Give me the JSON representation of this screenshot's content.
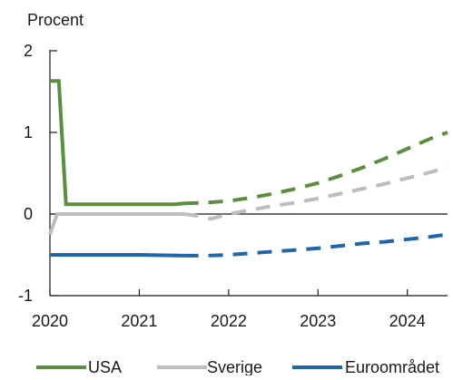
{
  "chart_data": {
    "type": "line",
    "ylabel": "Procent",
    "ylim": [
      -1,
      2
    ],
    "yticks": [
      -1,
      0,
      1,
      2
    ],
    "xlim": [
      2020.0,
      2024.45
    ],
    "xtick_positions": [
      2020,
      2021,
      2022,
      2023,
      2024
    ],
    "xtick_labels": [
      "2020",
      "2021",
      "2022",
      "2023",
      "2024"
    ],
    "zero_line": true,
    "legend_position": "bottom",
    "forecast_start": 2021.5,
    "series": [
      {
        "name": "USA",
        "color": "#5b8f3f",
        "actual": [
          [
            2020.0,
            1.63
          ],
          [
            2020.1,
            1.63
          ],
          [
            2020.18,
            0.12
          ],
          [
            2020.5,
            0.12
          ],
          [
            2021.0,
            0.12
          ],
          [
            2021.4,
            0.12
          ],
          [
            2021.5,
            0.13
          ]
        ],
        "forecast": [
          [
            2021.5,
            0.13
          ],
          [
            2021.75,
            0.14
          ],
          [
            2022.0,
            0.16
          ],
          [
            2022.25,
            0.2
          ],
          [
            2022.5,
            0.25
          ],
          [
            2022.75,
            0.31
          ],
          [
            2023.0,
            0.38
          ],
          [
            2023.25,
            0.47
          ],
          [
            2023.5,
            0.57
          ],
          [
            2023.75,
            0.68
          ],
          [
            2024.0,
            0.8
          ],
          [
            2024.25,
            0.92
          ],
          [
            2024.45,
            1.0
          ]
        ]
      },
      {
        "name": "Sverige",
        "color": "#bdbdbd",
        "actual": [
          [
            2020.0,
            -0.25
          ],
          [
            2020.08,
            0.0
          ],
          [
            2020.5,
            0.0
          ],
          [
            2021.0,
            0.0
          ],
          [
            2021.5,
            0.0
          ]
        ],
        "forecast": [
          [
            2021.5,
            0.0
          ],
          [
            2021.7,
            -0.03
          ],
          [
            2021.8,
            -0.06
          ],
          [
            2021.9,
            -0.03
          ],
          [
            2022.0,
            0.0
          ],
          [
            2022.25,
            0.05
          ],
          [
            2022.5,
            0.1
          ],
          [
            2022.75,
            0.14
          ],
          [
            2023.0,
            0.19
          ],
          [
            2023.25,
            0.25
          ],
          [
            2023.5,
            0.31
          ],
          [
            2023.75,
            0.37
          ],
          [
            2024.0,
            0.44
          ],
          [
            2024.25,
            0.51
          ],
          [
            2024.45,
            0.57
          ]
        ]
      },
      {
        "name": "Euroområdet",
        "color": "#2066a8",
        "actual": [
          [
            2020.0,
            -0.5
          ],
          [
            2020.5,
            -0.5
          ],
          [
            2021.0,
            -0.5
          ],
          [
            2021.5,
            -0.51
          ]
        ],
        "forecast": [
          [
            2021.5,
            -0.51
          ],
          [
            2021.75,
            -0.51
          ],
          [
            2022.0,
            -0.5
          ],
          [
            2022.25,
            -0.48
          ],
          [
            2022.5,
            -0.46
          ],
          [
            2022.75,
            -0.44
          ],
          [
            2023.0,
            -0.42
          ],
          [
            2023.25,
            -0.39
          ],
          [
            2023.5,
            -0.36
          ],
          [
            2023.75,
            -0.34
          ],
          [
            2024.0,
            -0.31
          ],
          [
            2024.25,
            -0.28
          ],
          [
            2024.45,
            -0.25
          ]
        ]
      }
    ]
  }
}
